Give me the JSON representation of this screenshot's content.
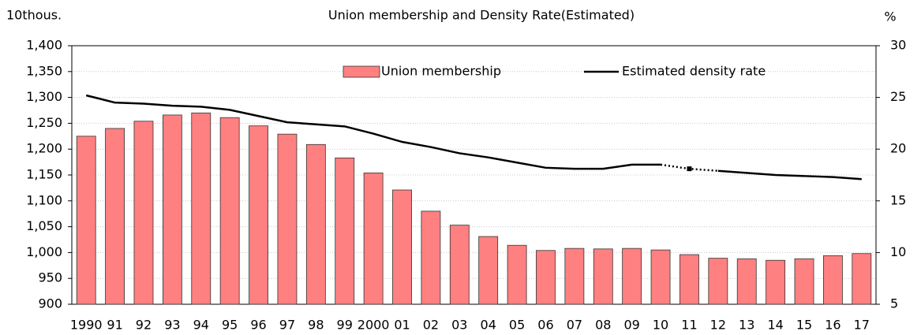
{
  "chart_data": {
    "type": "bar_line",
    "title": "Union membership and Density Rate(Estimated)",
    "y_unit": "10thous.",
    "y2_unit": "%",
    "categories": [
      "1990",
      "91",
      "92",
      "93",
      "94",
      "95",
      "96",
      "97",
      "98",
      "99",
      "2000",
      "01",
      "02",
      "03",
      "04",
      "05",
      "06",
      "07",
      "08",
      "09",
      "10",
      "11",
      "12",
      "13",
      "14",
      "15",
      "16",
      "17"
    ],
    "series": [
      {
        "name": "Union membership",
        "type": "bar",
        "color": "#ff8080",
        "values": [
          1225,
          1240,
          1254,
          1266,
          1270,
          1261,
          1245,
          1229,
          1209,
          1183,
          1154,
          1121,
          1080,
          1053,
          1031,
          1014,
          1004,
          1008,
          1007,
          1008,
          1005,
          996,
          989,
          988,
          985,
          988,
          994,
          998
        ]
      },
      {
        "name": "Estimated density rate",
        "type": "line",
        "color": "#000000",
        "axis": "y2",
        "dotted_categories": [
          "11"
        ],
        "values": [
          25.2,
          24.5,
          24.4,
          24.2,
          24.1,
          23.8,
          23.2,
          22.6,
          22.4,
          22.2,
          21.5,
          20.7,
          20.2,
          19.6,
          19.2,
          18.7,
          18.2,
          18.1,
          18.1,
          18.5,
          18.5,
          18.1,
          17.9,
          17.7,
          17.5,
          17.4,
          17.3,
          17.1
        ]
      }
    ],
    "ylim": [
      900,
      1400
    ],
    "yticks": [
      {
        "value": 900,
        "label": "900"
      },
      {
        "value": 950,
        "label": "950"
      },
      {
        "value": 1000,
        "label": "1,000"
      },
      {
        "value": 1050,
        "label": "1,050"
      },
      {
        "value": 1100,
        "label": "1,100"
      },
      {
        "value": 1150,
        "label": "1,150"
      },
      {
        "value": 1200,
        "label": "1,200"
      },
      {
        "value": 1250,
        "label": "1,250"
      },
      {
        "value": 1300,
        "label": "1,300"
      },
      {
        "value": 1350,
        "label": "1,350"
      },
      {
        "value": 1400,
        "label": "1,400"
      }
    ],
    "y2lim": [
      5,
      30
    ],
    "y2ticks": [
      5,
      10,
      15,
      20,
      25,
      30
    ],
    "grid": true,
    "legend": "top"
  }
}
